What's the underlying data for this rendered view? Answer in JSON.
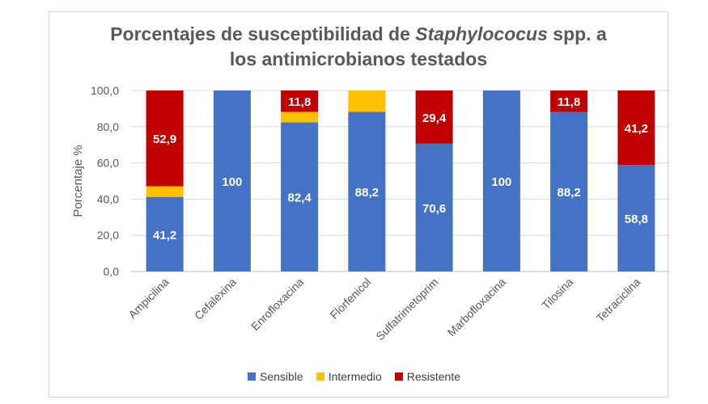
{
  "chart_data": {
    "type": "bar",
    "stacked": true,
    "title": {
      "line1_before": "Porcentajes de susceptibilidad de ",
      "line1_italic": "Staphylococus",
      "line1_after": " spp. a",
      "line2": "los antimicrobianos testados"
    },
    "ylabel": "Porcentaje %",
    "xlabel": "",
    "ylim": [
      0,
      100
    ],
    "yticks": [
      "0,0",
      "20,0",
      "40,0",
      "60,0",
      "80,0",
      "100,0"
    ],
    "grid": true,
    "legend_position": "bottom",
    "categories": [
      "Ampicilina",
      "Cefalexina",
      "Enrofloxacina",
      "Florfenicol",
      "Sulfatrimetoprim",
      "Marbofloxacina",
      "Tilosina",
      "Tetraciclina"
    ],
    "series": [
      {
        "name": "Sensible",
        "color": "#4472C4",
        "values": [
          41.2,
          100,
          82.4,
          88.2,
          70.6,
          100,
          88.2,
          58.8
        ],
        "labels": [
          "41,2",
          "100",
          "82,4",
          "88,2",
          "70,6",
          "100",
          "88,2",
          "58,8"
        ]
      },
      {
        "name": "Intermedio",
        "color": "#FFC000",
        "values": [
          5.9,
          0,
          5.8,
          11.8,
          0,
          0,
          0,
          0
        ],
        "labels": [
          "",
          "",
          "",
          "",
          "",
          "",
          "",
          ""
        ]
      },
      {
        "name": "Resistente",
        "color": "#C00000",
        "values": [
          52.9,
          0,
          11.8,
          0,
          29.4,
          0,
          11.8,
          41.2
        ],
        "labels": [
          "52,9",
          "",
          "11,8",
          "",
          "29,4",
          "",
          "11,8",
          "41,2"
        ]
      }
    ]
  }
}
